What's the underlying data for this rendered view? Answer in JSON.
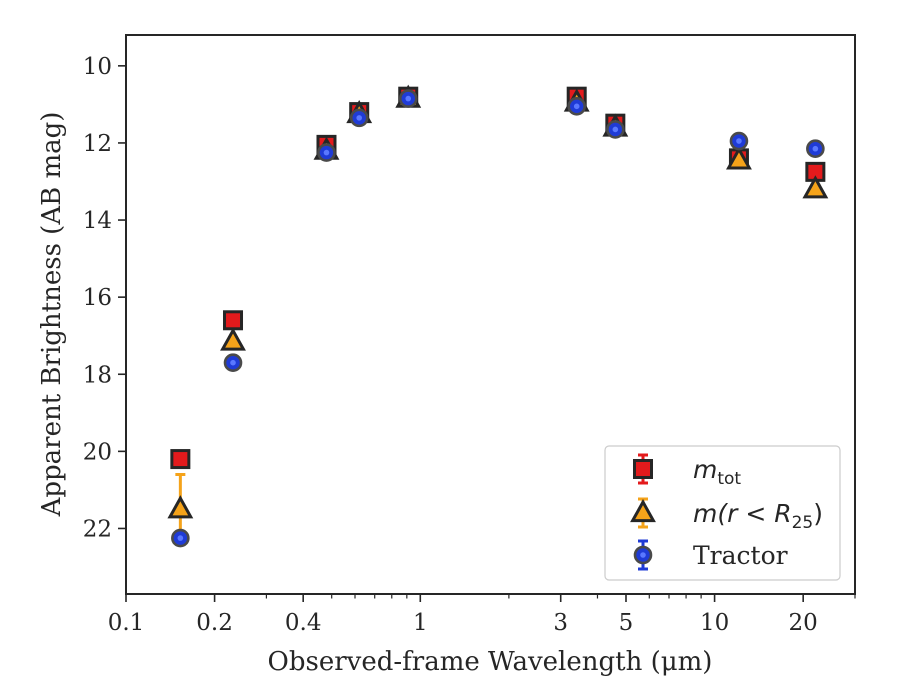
{
  "chart_data": {
    "type": "scatter",
    "title": "",
    "xlabel": "Observed-frame Wavelength (μm)",
    "ylabel": "Apparent Brightness (AB mag)",
    "xscale": "log",
    "xlim": [
      0.1,
      30
    ],
    "ylim": [
      23.7,
      9.2
    ],
    "y_inverted": true,
    "grid": false,
    "legend_position": "lower-right",
    "xticks": [
      {
        "value": 0.1,
        "label": "0.1"
      },
      {
        "value": 0.2,
        "label": "0.2"
      },
      {
        "value": 0.4,
        "label": "0.4"
      },
      {
        "value": 1,
        "label": "1"
      },
      {
        "value": 3,
        "label": "3"
      },
      {
        "value": 5,
        "label": "5"
      },
      {
        "value": 10,
        "label": "10"
      },
      {
        "value": 20,
        "label": "20"
      }
    ],
    "yticks": [
      {
        "value": 10,
        "label": "10"
      },
      {
        "value": 12,
        "label": "12"
      },
      {
        "value": 14,
        "label": "14"
      },
      {
        "value": 16,
        "label": "16"
      },
      {
        "value": 18,
        "label": "18"
      },
      {
        "value": 20,
        "label": "20"
      },
      {
        "value": 22,
        "label": "22"
      }
    ],
    "series": [
      {
        "name": "m_tot",
        "legend_main": "m",
        "legend_sub": "tot",
        "marker": "square",
        "fill": "#e31a1c",
        "edge": "#262626",
        "errcolor": "#e31a1c",
        "x": [
          0.153,
          0.231,
          0.48,
          0.62,
          0.91,
          3.4,
          4.6,
          12.1,
          22.0
        ],
        "y": [
          20.2,
          16.6,
          12.05,
          11.2,
          10.8,
          10.8,
          11.5,
          12.4,
          12.75
        ],
        "err": [
          0.1,
          0.1,
          0.1,
          0.2,
          0.1,
          0.1,
          0.1,
          0.1,
          0.15
        ]
      },
      {
        "name": "m(r<R_25)",
        "legend_main": "m(r < R",
        "legend_sub": "25",
        "legend_tail": ")",
        "marker": "triangle",
        "fill": "#f5a31a",
        "edge": "#262626",
        "errcolor": "#f5a31a",
        "x": [
          0.153,
          0.231,
          0.48,
          0.62,
          0.91,
          3.4,
          4.6,
          12.1,
          22.0
        ],
        "y": [
          21.5,
          17.15,
          12.2,
          11.25,
          10.85,
          10.95,
          11.6,
          12.45,
          13.2
        ],
        "err": [
          0.9,
          0.1,
          0.1,
          0.1,
          0.1,
          0.1,
          0.1,
          0.1,
          0.1
        ]
      },
      {
        "name": "Tractor",
        "legend_main": "Tractor",
        "marker": "circle",
        "fill": "#1f3bd6",
        "edge": "#4a4a4a",
        "errcolor": "#1f3bd6",
        "x": [
          0.153,
          0.231,
          0.48,
          0.62,
          0.91,
          3.4,
          4.6,
          12.1,
          22.0
        ],
        "y": [
          22.25,
          17.7,
          12.25,
          11.35,
          10.85,
          11.05,
          11.65,
          11.95,
          12.15
        ],
        "err": [
          0.1,
          0.05,
          0.05,
          0.05,
          0.05,
          0.05,
          0.05,
          0.05,
          0.05
        ]
      }
    ]
  }
}
